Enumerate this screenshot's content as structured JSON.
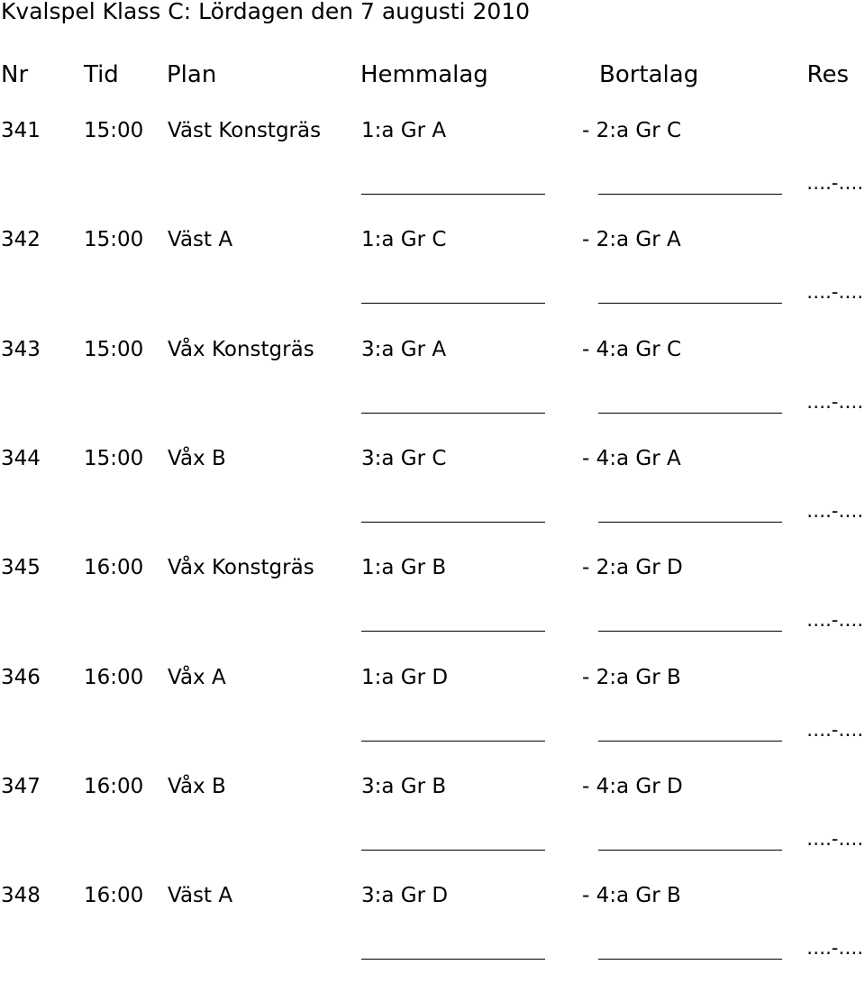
{
  "title": "Kvalspel Klass C: Lördagen den 7 augusti 2010",
  "headers": {
    "nr": "Nr",
    "tid": "Tid",
    "plan": "Plan",
    "hemmalag": "Hemmalag",
    "bortalag": "Bortalag",
    "res": "Res"
  },
  "matches": [
    {
      "nr": "341",
      "tid": "15:00",
      "plan": "Väst Konstgräs",
      "hemma": "1:a Gr A",
      "borta": "- 2:a Gr C",
      "res": "….-…."
    },
    {
      "nr": "342",
      "tid": "15:00",
      "plan": "Väst A",
      "hemma": "1:a Gr C",
      "borta": "- 2:a Gr A",
      "res": "….-…."
    },
    {
      "nr": "343",
      "tid": "15:00",
      "plan": "Våx Konstgräs",
      "hemma": "3:a Gr A",
      "borta": "- 4:a Gr C",
      "res": "….-…."
    },
    {
      "nr": "344",
      "tid": "15:00",
      "plan": "Våx B",
      "hemma": "3:a Gr C",
      "borta": "- 4:a Gr A",
      "res": "….-…."
    },
    {
      "nr": "345",
      "tid": "16:00",
      "plan": "Våx Konstgräs",
      "hemma": "1:a Gr B",
      "borta": "- 2:a Gr D",
      "res": "….-…."
    },
    {
      "nr": "346",
      "tid": "16:00",
      "plan": "Våx A",
      "hemma": "1:a Gr D",
      "borta": "- 2:a Gr B",
      "res": "….-…."
    },
    {
      "nr": "347",
      "tid": "16:00",
      "plan": "Våx B",
      "hemma": "3:a Gr B",
      "borta": "- 4:a Gr D",
      "res": "….-…."
    },
    {
      "nr": "348",
      "tid": "16:00",
      "plan": "Väst A",
      "hemma": "3:a Gr D",
      "borta": "- 4:a Gr B",
      "res": "….-…."
    }
  ]
}
